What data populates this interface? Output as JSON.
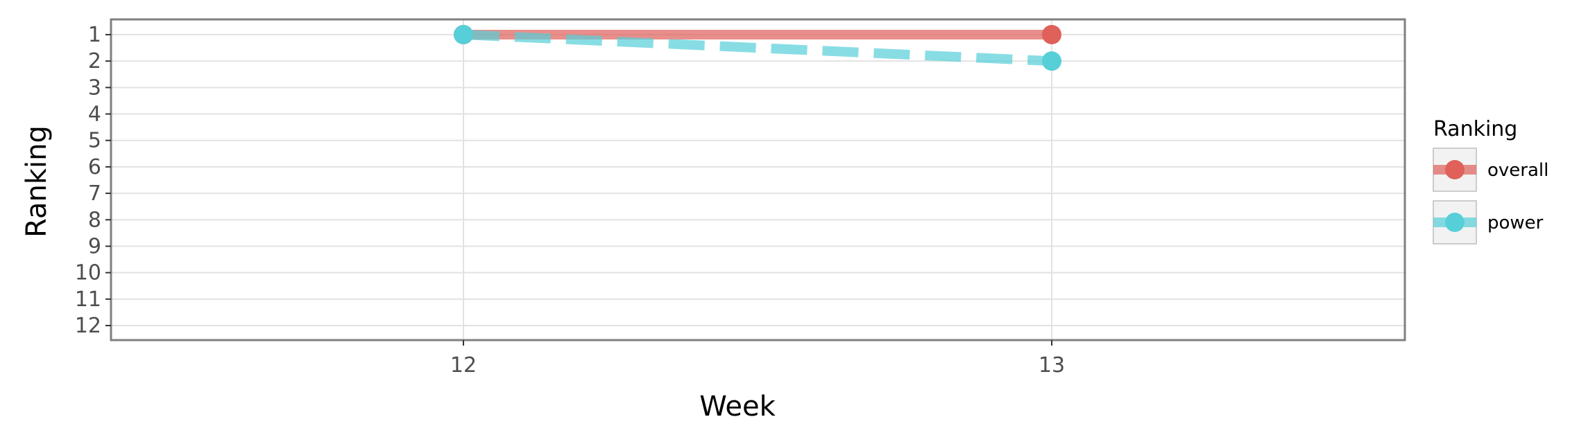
{
  "chart_data": {
    "type": "line",
    "title": "",
    "xlabel": "Week",
    "ylabel": "Ranking",
    "x": [
      12,
      13
    ],
    "x_ticks": [
      "12",
      "13"
    ],
    "y_ticks": [
      "1",
      "2",
      "3",
      "4",
      "5",
      "6",
      "7",
      "8",
      "9",
      "10",
      "11",
      "12"
    ],
    "ylim": [
      1,
      12
    ],
    "y_reversed": true,
    "grid": true,
    "legend": {
      "title": "Ranking",
      "placement": "right"
    },
    "series": [
      {
        "name": "overall",
        "values": [
          1,
          1
        ],
        "color": "#e0605a",
        "line_style": "solid"
      },
      {
        "name": "power",
        "values": [
          1,
          2
        ],
        "color": "#56cfd8",
        "line_style": "dashed"
      }
    ]
  }
}
